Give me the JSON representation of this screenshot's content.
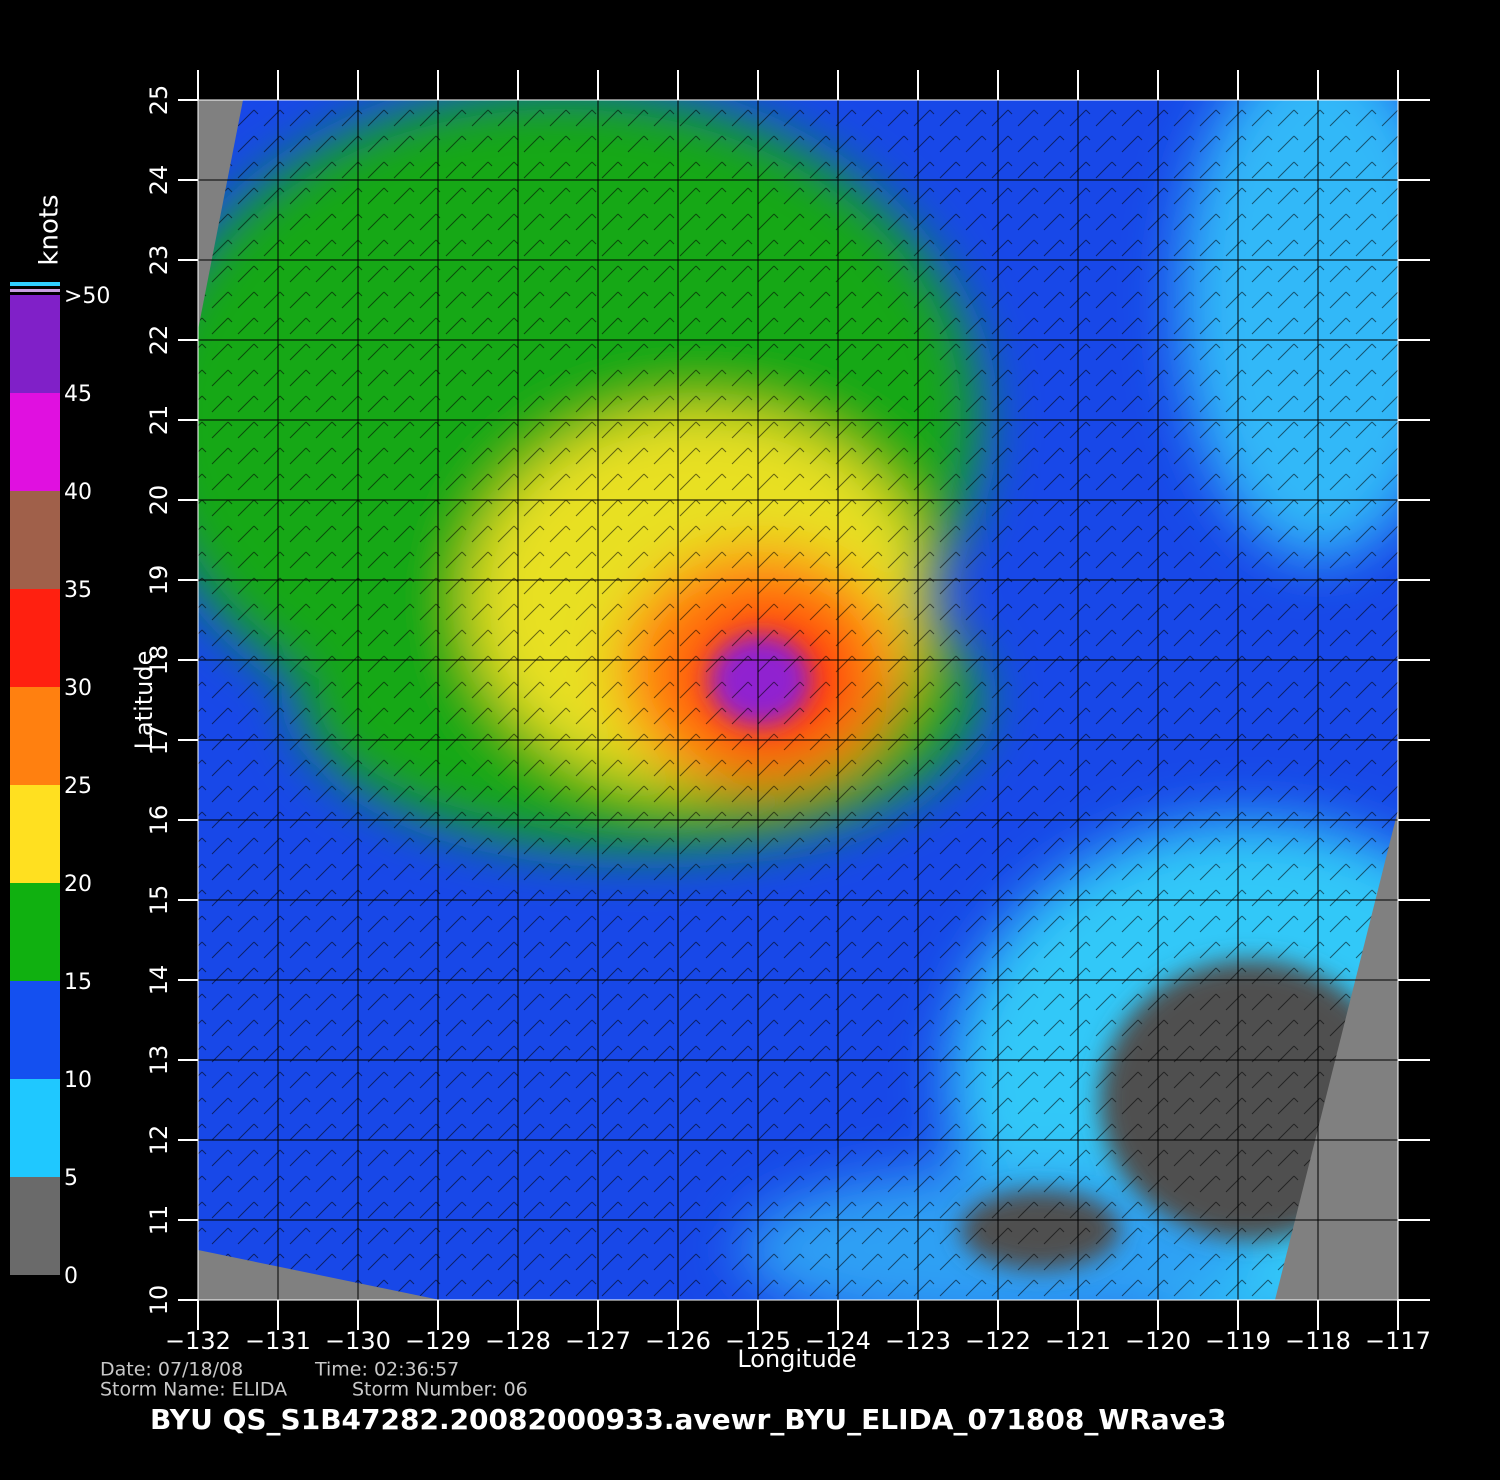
{
  "chart_data": {
    "type": "map",
    "xlabel": "Longitude",
    "ylabel": "Latitude",
    "xlim": [
      -132,
      -117
    ],
    "ylim": [
      10,
      25
    ],
    "xticks": [
      {
        "value": -132,
        "label": "−132"
      },
      {
        "value": -131,
        "label": "−131"
      },
      {
        "value": -130,
        "label": "−130"
      },
      {
        "value": -129,
        "label": "−129"
      },
      {
        "value": -128,
        "label": "−128"
      },
      {
        "value": -127,
        "label": "−127"
      },
      {
        "value": -126,
        "label": "−126"
      },
      {
        "value": -125,
        "label": "−125"
      },
      {
        "value": -124,
        "label": "−124"
      },
      {
        "value": -123,
        "label": "−123"
      },
      {
        "value": -122,
        "label": "−122"
      },
      {
        "value": -121,
        "label": "−121"
      },
      {
        "value": -120,
        "label": "−120"
      },
      {
        "value": -119,
        "label": "−119"
      },
      {
        "value": -118,
        "label": "−118"
      },
      {
        "value": -117,
        "label": "−117"
      }
    ],
    "yticks": [
      10,
      11,
      12,
      13,
      14,
      15,
      16,
      17,
      18,
      19,
      20,
      21,
      22,
      23,
      24,
      25
    ],
    "grid": true,
    "colorbar": {
      "title": "knots",
      "clim": [
        0,
        50
      ],
      "ticks": [
        0,
        5,
        10,
        15,
        20,
        25,
        30,
        35,
        40,
        45,
        {
          "value": 50,
          "label": ">50"
        }
      ],
      "colors": [
        "#6a6a6a",
        "#1fc8ff",
        "#1450f0",
        "#10b010",
        "#ffe020",
        "#ff8010",
        "#ff2010",
        "#a0604a",
        "#e010e0",
        "#8020c8"
      ]
    },
    "date": "Date: 07/18/08",
    "time": "Time: 02:36:57",
    "storm_name": "Storm Name: ELIDA",
    "storm_number": "Storm Number: 06",
    "file_title": "BYU QS_S1B47282.20082000933.avewr_BYU_ELIDA_071808_WRave3"
  }
}
